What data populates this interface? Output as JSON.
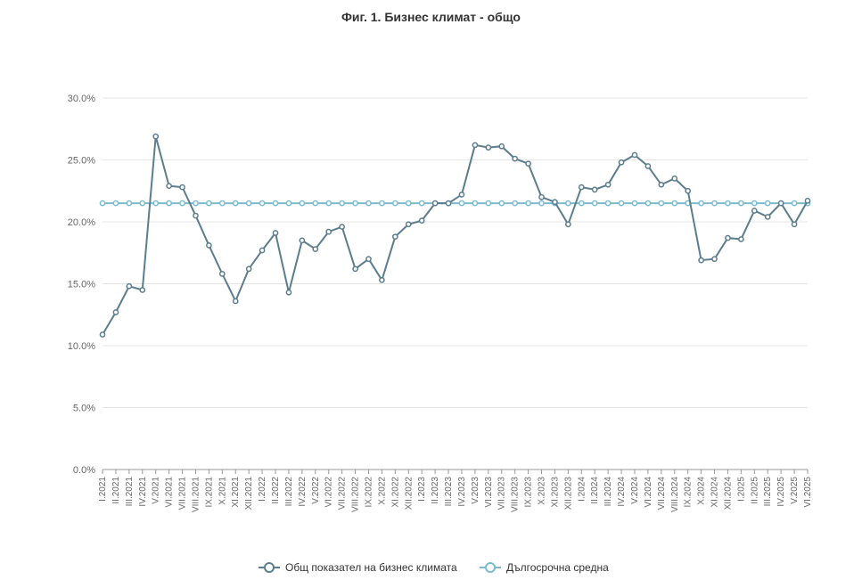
{
  "chart_data": {
    "type": "line",
    "title": "Фиг. 1. Бизнес климат - общо",
    "xlabel": "",
    "ylabel": "",
    "ylim": [
      0,
      30
    ],
    "yticks": [
      "0.0%",
      "5.0%",
      "10.0%",
      "15.0%",
      "20.0%",
      "25.0%",
      "30.0%"
    ],
    "grid": true,
    "legend_position": "bottom",
    "categories": [
      "I.2021",
      "II.2021",
      "III.2021",
      "IV.2021",
      "V.2021",
      "VI.2021",
      "VII.2021",
      "VIII.2021",
      "IX.2021",
      "X.2021",
      "XI.2021",
      "XII.2021",
      "I.2022",
      "II.2022",
      "III.2022",
      "IV.2022",
      "V.2022",
      "VI.2022",
      "VII.2022",
      "VIII.2022",
      "IX.2022",
      "X.2022",
      "XI.2022",
      "XII.2022",
      "I.2023",
      "II.2023",
      "III.2023",
      "IV.2023",
      "V.2023",
      "VI.2023",
      "VII.2023",
      "VIII.2023",
      "IX.2023",
      "X.2023",
      "XI.2023",
      "XII.2023",
      "I.2024",
      "II.2024",
      "III.2024",
      "IV.2024",
      "V.2024",
      "VI.2024",
      "VII.2024",
      "VIII.2024",
      "IX.2024",
      "X.2024",
      "XI.2024",
      "XII.2024",
      "I.2025",
      "II.2025",
      "III.2025",
      "IV.2025",
      "V.2025",
      "VI.2025"
    ],
    "series": [
      {
        "name": "Общ показател на бизнес климата",
        "color": "#5b7d8e",
        "values": [
          10.9,
          12.7,
          14.8,
          14.5,
          26.9,
          22.9,
          22.8,
          20.5,
          18.1,
          15.8,
          13.6,
          16.2,
          17.7,
          19.1,
          14.3,
          18.5,
          17.8,
          19.2,
          19.6,
          16.2,
          17.0,
          15.3,
          18.8,
          19.8,
          20.1,
          21.5,
          21.5,
          22.2,
          26.2,
          26.0,
          26.1,
          25.1,
          24.7,
          22.0,
          21.6,
          19.8,
          22.8,
          22.6,
          23.0,
          24.8,
          25.4,
          24.5,
          23.0,
          23.5,
          22.5,
          16.9,
          17.0,
          18.7,
          18.6,
          20.9,
          20.4,
          21.5,
          19.8,
          21.7
        ]
      },
      {
        "name": "Дългосрочна средна",
        "color": "#7bbbd0",
        "values": [
          21.5,
          21.5,
          21.5,
          21.5,
          21.5,
          21.5,
          21.5,
          21.5,
          21.5,
          21.5,
          21.5,
          21.5,
          21.5,
          21.5,
          21.5,
          21.5,
          21.5,
          21.5,
          21.5,
          21.5,
          21.5,
          21.5,
          21.5,
          21.5,
          21.5,
          21.5,
          21.5,
          21.5,
          21.5,
          21.5,
          21.5,
          21.5,
          21.5,
          21.5,
          21.5,
          21.5,
          21.5,
          21.5,
          21.5,
          21.5,
          21.5,
          21.5,
          21.5,
          21.5,
          21.5,
          21.5,
          21.5,
          21.5,
          21.5,
          21.5,
          21.5,
          21.5,
          21.5,
          21.5
        ]
      }
    ]
  }
}
